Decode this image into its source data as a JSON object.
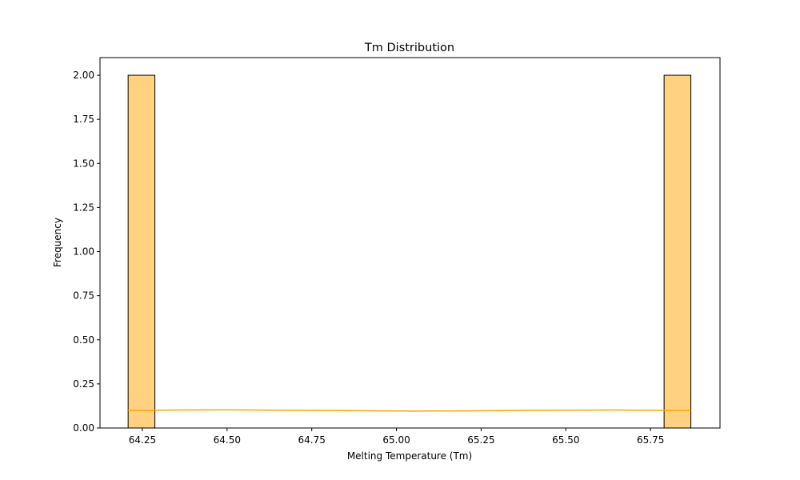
{
  "chart_data": {
    "type": "bar",
    "title": "Tm Distribution",
    "xlabel": "Melting Temperature (Tm)",
    "ylabel": "Frequency",
    "xlim": [
      64.125,
      65.955
    ],
    "ylim": [
      0,
      2.1
    ],
    "x_ticks": [
      64.25,
      64.5,
      64.75,
      65.0,
      65.25,
      65.5,
      65.75
    ],
    "x_tick_labels": [
      "64.25",
      "64.50",
      "64.75",
      "65.00",
      "65.25",
      "65.50",
      "65.75"
    ],
    "y_ticks": [
      0,
      0.25,
      0.5,
      0.75,
      1.0,
      1.25,
      1.5,
      1.75,
      2.0
    ],
    "y_tick_labels": [
      "0.00",
      "0.25",
      "0.50",
      "0.75",
      "1.00",
      "1.25",
      "1.50",
      "1.75",
      "2.00"
    ],
    "bins": [
      {
        "x0": 64.208,
        "x1": 64.287,
        "count": 2
      },
      {
        "x0": 65.79,
        "x1": 65.869,
        "count": 2
      }
    ],
    "kde": {
      "x": [
        64.208,
        64.35,
        64.5,
        64.65,
        64.8,
        64.95,
        65.04,
        65.2,
        65.35,
        65.5,
        65.65,
        65.8,
        65.869
      ],
      "y": [
        0.1,
        0.102,
        0.103,
        0.101,
        0.099,
        0.097,
        0.096,
        0.097,
        0.099,
        0.101,
        0.102,
        0.1,
        0.1
      ]
    },
    "colors": {
      "bar_fill": "#ffd180",
      "bar_edge": "#000000",
      "kde_line": "#ffa500"
    },
    "grid": false
  }
}
